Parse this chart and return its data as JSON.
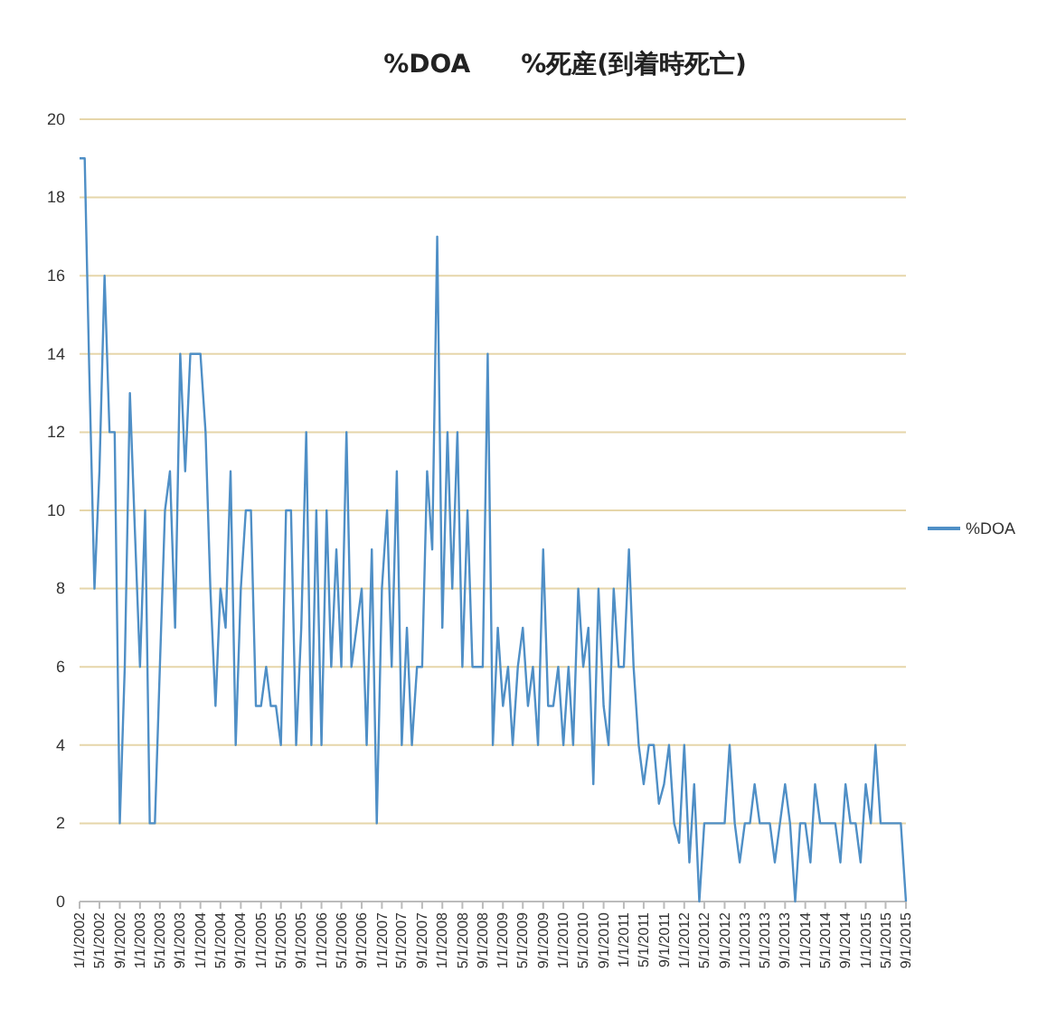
{
  "chart_data": {
    "type": "line",
    "title": "%DOA　　%死産(到着時死亡)",
    "x": [
      "2002-01",
      "2002-02",
      "2002-03",
      "2002-04",
      "2002-05",
      "2002-06",
      "2002-07",
      "2002-08",
      "2002-09",
      "2002-10",
      "2002-11",
      "2002-12",
      "2003-01",
      "2003-02",
      "2003-03",
      "2003-04",
      "2003-05",
      "2003-06",
      "2003-07",
      "2003-08",
      "2003-09",
      "2003-10",
      "2003-11",
      "2003-12",
      "2004-01",
      "2004-02",
      "2004-03",
      "2004-04",
      "2004-05",
      "2004-06",
      "2004-07",
      "2004-08",
      "2004-09",
      "2004-10",
      "2004-11",
      "2004-12",
      "2005-01",
      "2005-02",
      "2005-03",
      "2005-04",
      "2005-05",
      "2005-06",
      "2005-07",
      "2005-08",
      "2005-09",
      "2005-10",
      "2005-11",
      "2005-12",
      "2006-01",
      "2006-02",
      "2006-03",
      "2006-04",
      "2006-05",
      "2006-06",
      "2006-07",
      "2006-08",
      "2006-09",
      "2006-10",
      "2006-11",
      "2006-12",
      "2007-01",
      "2007-02",
      "2007-03",
      "2007-04",
      "2007-05",
      "2007-06",
      "2007-07",
      "2007-08",
      "2007-09",
      "2007-10",
      "2007-11",
      "2007-12",
      "2008-01",
      "2008-02",
      "2008-03",
      "2008-04",
      "2008-05",
      "2008-06",
      "2008-07",
      "2008-08",
      "2008-09",
      "2008-10",
      "2008-11",
      "2008-12",
      "2009-01",
      "2009-02",
      "2009-03",
      "2009-04",
      "2009-05",
      "2009-06",
      "2009-07",
      "2009-08",
      "2009-09",
      "2009-10",
      "2009-11",
      "2009-12",
      "2010-01",
      "2010-02",
      "2010-03",
      "2010-04",
      "2010-05",
      "2010-06",
      "2010-07",
      "2010-08",
      "2010-09",
      "2010-10",
      "2010-11",
      "2010-12",
      "2011-01",
      "2011-02",
      "2011-03",
      "2011-04",
      "2011-05",
      "2011-06",
      "2011-07",
      "2011-08",
      "2011-09",
      "2011-10",
      "2011-11",
      "2011-12",
      "2012-01",
      "2012-02",
      "2012-03",
      "2012-04",
      "2012-05",
      "2012-06",
      "2012-07",
      "2012-08",
      "2012-09",
      "2012-10",
      "2012-11",
      "2012-12",
      "2013-01",
      "2013-02",
      "2013-03",
      "2013-04",
      "2013-05",
      "2013-06",
      "2013-07",
      "2013-08",
      "2013-09",
      "2013-10",
      "2013-11",
      "2013-12",
      "2014-01",
      "2014-02",
      "2014-03",
      "2014-04",
      "2014-05",
      "2014-06",
      "2014-07",
      "2014-08",
      "2014-09",
      "2014-10",
      "2014-11",
      "2014-12",
      "2015-01",
      "2015-02",
      "2015-03",
      "2015-04",
      "2015-05",
      "2015-06",
      "2015-07",
      "2015-08",
      "2015-09"
    ],
    "series": [
      {
        "name": "%DOA",
        "color": "#4f8fc6",
        "values": [
          19,
          19,
          13.5,
          8,
          11,
          16,
          12,
          12,
          2,
          6,
          13,
          9.5,
          6,
          10,
          2,
          2,
          6,
          10,
          11,
          7,
          14,
          11,
          14,
          14,
          14,
          12,
          8,
          5,
          8,
          7,
          11,
          4,
          8,
          10,
          10,
          5,
          5,
          6,
          5,
          5,
          4,
          10,
          10,
          4,
          7,
          12,
          4,
          10,
          4,
          10,
          6,
          9,
          6,
          12,
          6,
          7,
          8,
          4,
          9,
          2,
          8,
          10,
          6,
          11,
          4,
          7,
          4,
          6,
          6,
          11,
          9,
          17,
          7,
          12,
          8,
          12,
          6,
          10,
          6,
          6,
          6,
          14,
          4,
          7,
          5,
          6,
          4,
          6,
          7,
          5,
          6,
          4,
          9,
          5,
          5,
          6,
          4,
          6,
          4,
          8,
          6,
          7,
          3,
          8,
          5,
          4,
          8,
          6,
          6,
          9,
          6,
          4,
          3,
          4,
          4,
          2.5,
          3,
          4,
          2,
          1.5,
          4,
          1,
          3,
          0,
          2,
          2,
          2,
          2,
          2,
          4,
          2,
          1,
          2,
          2,
          3,
          2,
          2,
          2,
          1,
          2,
          3,
          2,
          0,
          2,
          2,
          1,
          3,
          2,
          2,
          2,
          2,
          1,
          3,
          2,
          2,
          1,
          3,
          2,
          4,
          2,
          2,
          2,
          2,
          2,
          0
        ]
      }
    ],
    "xlim": [
      "2002-01",
      "2015-09"
    ],
    "xticks": [
      {
        "value": "2002-01",
        "label": "1/1/2002"
      },
      {
        "value": "2002-05",
        "label": "5/1/2002"
      },
      {
        "value": "2002-09",
        "label": "9/1/2002"
      },
      {
        "value": "2003-01",
        "label": "1/1/2003"
      },
      {
        "value": "2003-05",
        "label": "5/1/2003"
      },
      {
        "value": "2003-09",
        "label": "9/1/2003"
      },
      {
        "value": "2004-01",
        "label": "1/1/2004"
      },
      {
        "value": "2004-05",
        "label": "5/1/2004"
      },
      {
        "value": "2004-09",
        "label": "9/1/2004"
      },
      {
        "value": "2005-01",
        "label": "1/1/2005"
      },
      {
        "value": "2005-05",
        "label": "5/1/2005"
      },
      {
        "value": "2005-09",
        "label": "9/1/2005"
      },
      {
        "value": "2006-01",
        "label": "1/1/2006"
      },
      {
        "value": "2006-05",
        "label": "5/1/2006"
      },
      {
        "value": "2006-09",
        "label": "9/1/2006"
      },
      {
        "value": "2007-01",
        "label": "1/1/2007"
      },
      {
        "value": "2007-05",
        "label": "5/1/2007"
      },
      {
        "value": "2007-09",
        "label": "9/1/2007"
      },
      {
        "value": "2008-01",
        "label": "1/1/2008"
      },
      {
        "value": "2008-05",
        "label": "5/1/2008"
      },
      {
        "value": "2008-09",
        "label": "9/1/2008"
      },
      {
        "value": "2009-01",
        "label": "1/1/2009"
      },
      {
        "value": "2009-05",
        "label": "5/1/2009"
      },
      {
        "value": "2009-09",
        "label": "9/1/2009"
      },
      {
        "value": "2010-01",
        "label": "1/1/2010"
      },
      {
        "value": "2010-05",
        "label": "5/1/2010"
      },
      {
        "value": "2010-09",
        "label": "9/1/2010"
      },
      {
        "value": "2011-01",
        "label": "1/1/2011"
      },
      {
        "value": "2011-05",
        "label": "5/1/2011"
      },
      {
        "value": "2011-09",
        "label": "9/1/2011"
      },
      {
        "value": "2012-01",
        "label": "1/1/2012"
      },
      {
        "value": "2012-05",
        "label": "5/1/2012"
      },
      {
        "value": "2012-09",
        "label": "9/1/2012"
      },
      {
        "value": "2013-01",
        "label": "1/1/2013"
      },
      {
        "value": "2013-05",
        "label": "5/1/2013"
      },
      {
        "value": "2013-09",
        "label": "9/1/2013"
      },
      {
        "value": "2014-01",
        "label": "1/1/2014"
      },
      {
        "value": "2014-05",
        "label": "5/1/2014"
      },
      {
        "value": "2014-09",
        "label": "9/1/2014"
      },
      {
        "value": "2015-01",
        "label": "1/1/2015"
      },
      {
        "value": "2015-05",
        "label": "5/1/2015"
      },
      {
        "value": "2015-09",
        "label": "9/1/2015"
      }
    ],
    "ylim": [
      0,
      20
    ],
    "yticks": [
      0,
      2,
      4,
      6,
      8,
      10,
      12,
      14,
      16,
      18,
      20
    ],
    "grid": "y",
    "legend": "right",
    "marker": "none",
    "line_style": "solid"
  }
}
